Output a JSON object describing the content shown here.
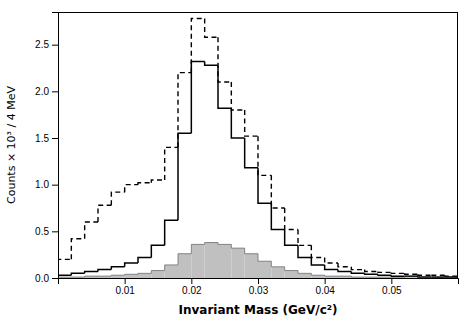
{
  "chart_data": {
    "type": "histogram",
    "xlabel": "Invariant Mass (GeV/c²)",
    "ylabel": "Counts × 10³ / 4 MeV",
    "xlim": [
      0.0,
      0.06
    ],
    "ylim": [
      0.0,
      2.85
    ],
    "xticks": [
      0.01,
      0.02,
      0.03,
      0.04,
      0.05
    ],
    "yticks": [
      {
        "value": 0.0,
        "label": "0.0"
      },
      0.5,
      {
        "value": 1.0,
        "label": "1.0"
      },
      1.5,
      {
        "value": 2.0,
        "label": "2.0"
      },
      2.5
    ],
    "grid": false,
    "bins": [
      0.0,
      0.002,
      0.004,
      0.006,
      0.008,
      0.01,
      0.012,
      0.014,
      0.016,
      0.018,
      0.02,
      0.022,
      0.024,
      0.026,
      0.028,
      0.03,
      0.032,
      0.034,
      0.036,
      0.038,
      0.04,
      0.042,
      0.044,
      0.046,
      0.048,
      0.05,
      0.052,
      0.054,
      0.056,
      0.058,
      0.06
    ],
    "series": [
      {
        "type": "area",
        "color": "#c0c0c0",
        "values": [
          0.01,
          0.01,
          0.02,
          0.02,
          0.03,
          0.04,
          0.05,
          0.08,
          0.14,
          0.26,
          0.36,
          0.38,
          0.36,
          0.32,
          0.26,
          0.18,
          0.12,
          0.08,
          0.05,
          0.03,
          0.02,
          0.02,
          0.01,
          0.01,
          0.01,
          0.01,
          0.0,
          0.0,
          0.0,
          0.0
        ]
      },
      {
        "type": "step",
        "color": "#000000",
        "line_style": "solid",
        "values": [
          0.03,
          0.05,
          0.07,
          0.09,
          0.12,
          0.16,
          0.22,
          0.35,
          0.62,
          1.55,
          2.32,
          2.28,
          1.82,
          1.5,
          1.18,
          0.8,
          0.52,
          0.35,
          0.22,
          0.14,
          0.09,
          0.07,
          0.05,
          0.04,
          0.03,
          0.02,
          0.02,
          0.01,
          0.01,
          0.01
        ]
      },
      {
        "type": "step",
        "color": "#000000",
        "line_style": "dashed",
        "values": [
          0.2,
          0.42,
          0.6,
          0.78,
          0.92,
          1.0,
          1.02,
          1.05,
          1.4,
          2.2,
          2.78,
          2.58,
          2.1,
          1.8,
          1.52,
          1.1,
          0.75,
          0.52,
          0.35,
          0.22,
          0.16,
          0.12,
          0.09,
          0.07,
          0.06,
          0.05,
          0.04,
          0.03,
          0.03,
          0.02
        ]
      }
    ]
  }
}
